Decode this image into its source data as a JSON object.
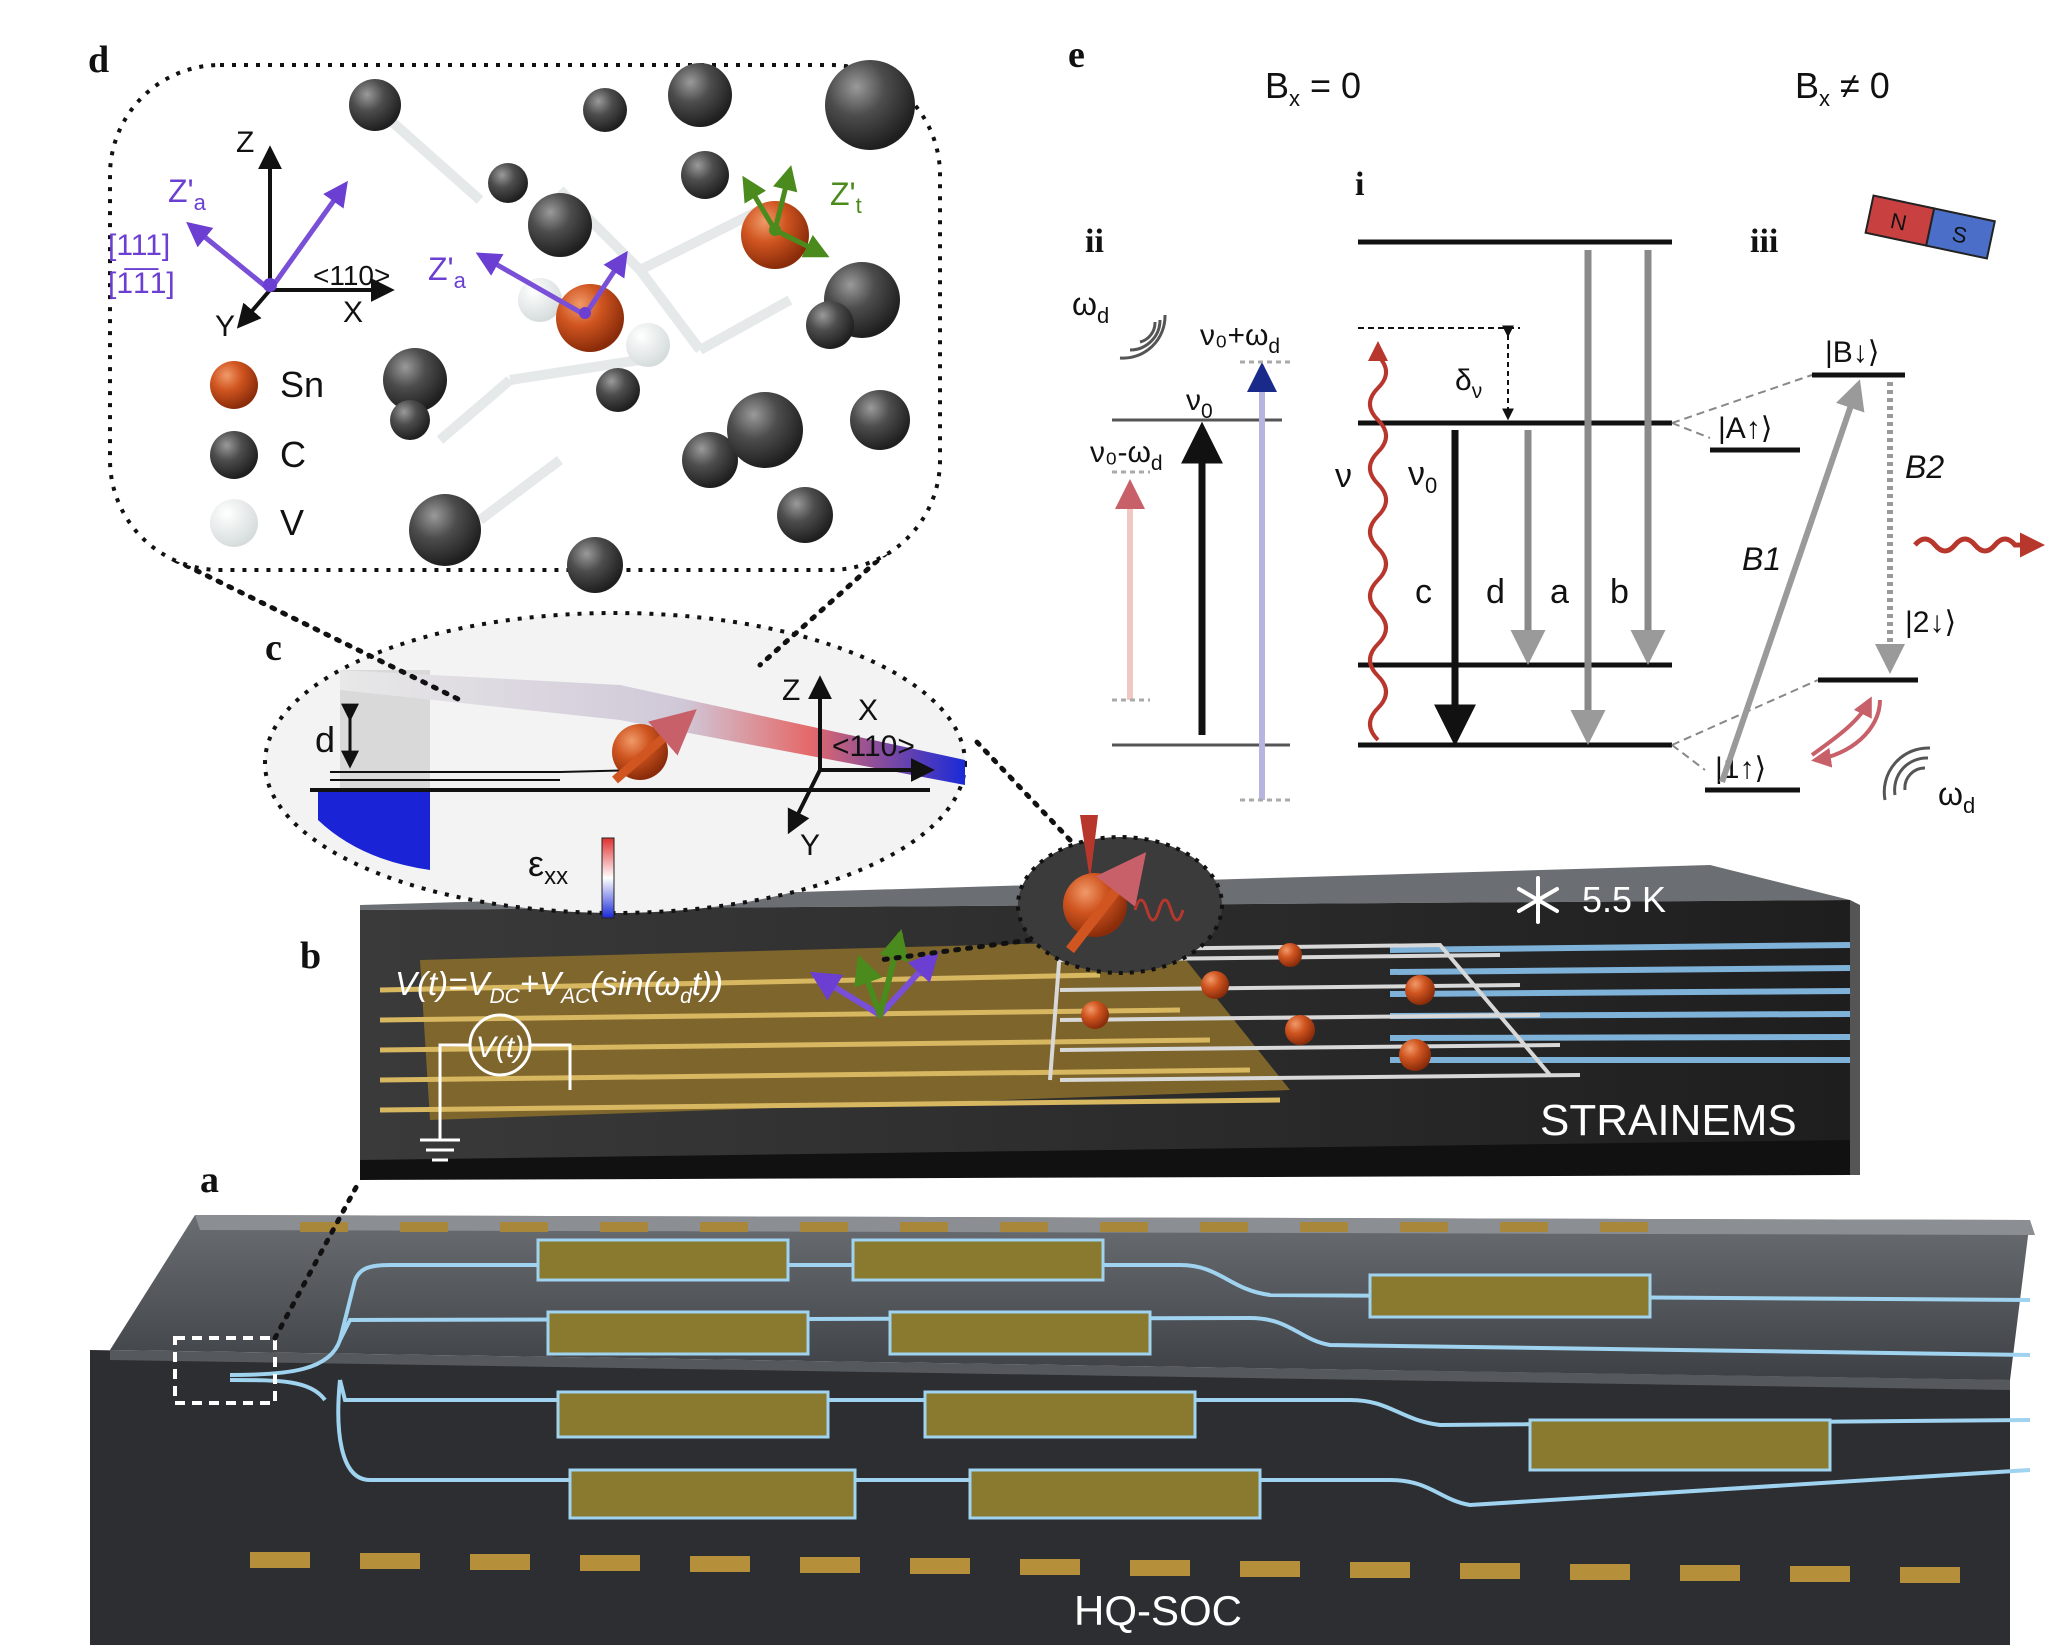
{
  "panels": {
    "a": "a",
    "b": "b",
    "c": "c",
    "d": "d",
    "e": "e"
  },
  "panel_a": {
    "chip_label": "HQ-SOC"
  },
  "panel_b": {
    "device_label": "STRAINEMS",
    "temperature": "5.5 K",
    "voltage_equation": "V(t)=V_DC+V_AC(sin(ω_d t))",
    "source_label": "V(t)"
  },
  "panel_c": {
    "d_label": "d",
    "axes": {
      "z": "Z",
      "x": "X",
      "y": "Y",
      "direction": "<110>"
    },
    "strain_label": "ε",
    "strain_sub": "xx"
  },
  "panel_d": {
    "axes": {
      "z": "Z",
      "x": "X",
      "y": "Y",
      "direction": "<110>"
    },
    "za_label": "Z'",
    "za_sub": "a",
    "zt_label": "Z'",
    "zt_sub": "t",
    "miller_1": "[111]",
    "miller_2": "[1̅1̅1]",
    "legend": [
      {
        "name": "Sn",
        "color": "#c94a1c"
      },
      {
        "name": "C",
        "color": "#4a4a4a"
      },
      {
        "name": "V",
        "color": "#eef1f1"
      }
    ]
  },
  "panel_e": {
    "bx_zero": "B",
    "bx_zero_rest": " = 0",
    "bx_nonzero": "B",
    "bx_nonzero_rest": " ≠ 0",
    "bx_sub": "x",
    "sub_i": "i",
    "sub_ii": "ii",
    "sub_iii": "iii",
    "ii": {
      "omega_d": "ω",
      "omega_sub": "d",
      "nu0_plus": "ν₀+ω",
      "nu0": "ν",
      "nu0_sub": "0",
      "nu0_minus": "ν₀-ω"
    },
    "i": {
      "delta": "δ",
      "delta_sub": "ν",
      "nu": "ν",
      "nu0": "ν",
      "nu0_sub": "0",
      "transitions": [
        "c",
        "d",
        "a",
        "b"
      ]
    },
    "iii": {
      "state_B": "|B↓⟩",
      "state_A": "|A↑⟩",
      "state_2": "|2↓⟩",
      "state_1": "|1↑⟩",
      "b1": "B1",
      "b2": "B2",
      "magnet_n": "N",
      "magnet_s": "S",
      "omega_d": "ω",
      "omega_sub": "d"
    }
  },
  "colors": {
    "sn": "#c94a1c",
    "carbon": "#4a4a4a",
    "axis_purple": "#6a3fd1",
    "axis_green": "#4b8a1d",
    "waveguide": "#9fd3f0",
    "gold": "#c9a845",
    "red_wave": "#b8372d"
  }
}
